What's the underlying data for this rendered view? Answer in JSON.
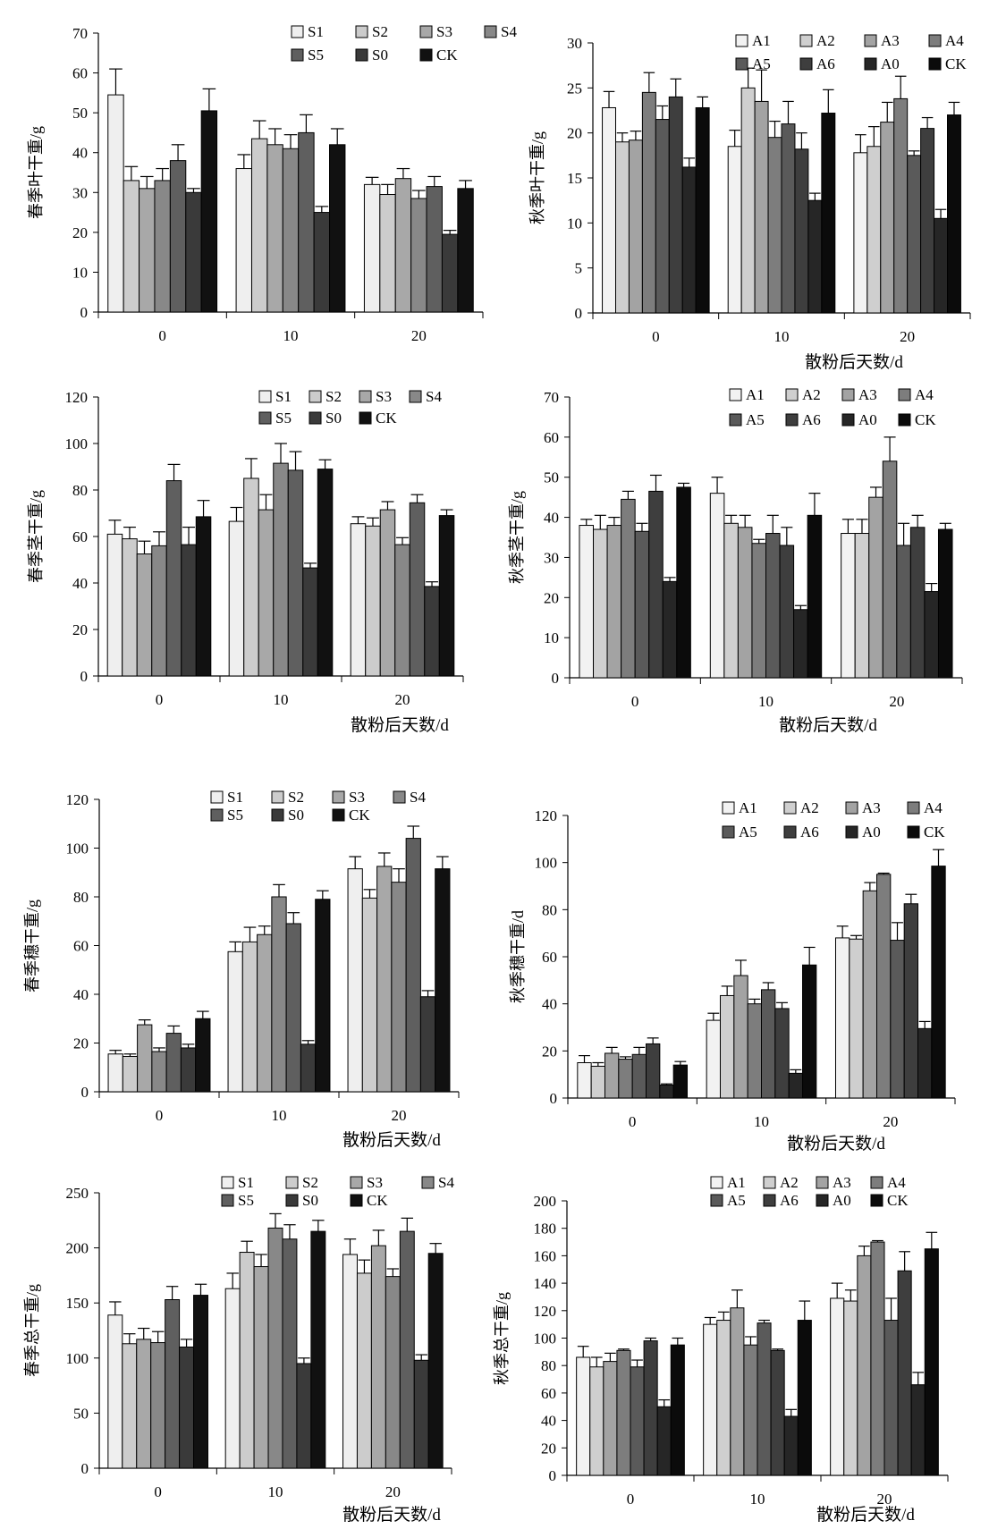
{
  "styles": {
    "spring_fills": [
      "#efefef",
      "#cccccc",
      "#a8a8a8",
      "#888888",
      "#5f5f5f",
      "#3a3a3a",
      "#111111"
    ],
    "autumn_fills": [
      "#f2f2f2",
      "#cfcfcf",
      "#a3a3a3",
      "#7d7d7d",
      "#5a5a5a",
      "#3e3e3e",
      "#262626",
      "#0b0b0b"
    ]
  },
  "chart_data": [
    {
      "type": "bar",
      "ylabel": "春季叶干重/g",
      "xlabel": "",
      "ylim": [
        0,
        70
      ],
      "yticks": [
        0,
        10,
        20,
        30,
        40,
        50,
        60,
        70
      ],
      "categories": [
        "0",
        "10",
        "20"
      ],
      "legend": "top-right",
      "series": [
        {
          "name": "S1",
          "values": [
            54.5,
            36,
            32
          ],
          "errors": [
            6.5,
            3.5,
            1.8
          ]
        },
        {
          "name": "S2",
          "values": [
            33,
            43.5,
            29.5
          ],
          "errors": [
            3.5,
            4.5,
            2.5
          ]
        },
        {
          "name": "S3",
          "values": [
            31,
            42,
            33.5
          ],
          "errors": [
            3,
            4,
            2.5
          ]
        },
        {
          "name": "S4",
          "values": [
            33,
            41,
            28.5
          ],
          "errors": [
            3,
            3.5,
            2
          ]
        },
        {
          "name": "S5",
          "values": [
            38,
            45,
            31.5
          ],
          "errors": [
            4,
            4.5,
            2.5
          ]
        },
        {
          "name": "S0",
          "values": [
            30,
            25,
            19.5
          ],
          "errors": [
            1,
            1.5,
            1
          ]
        },
        {
          "name": "CK",
          "values": [
            50.5,
            42,
            31
          ],
          "errors": [
            5.5,
            4,
            2
          ]
        }
      ]
    },
    {
      "type": "bar",
      "ylabel": "秋季叶干重/g",
      "xlabel": "散粉后天数/d",
      "ylim": [
        0,
        30
      ],
      "yticks": [
        0,
        5,
        10,
        15,
        20,
        25,
        30
      ],
      "categories": [
        "0",
        "10",
        "20"
      ],
      "legend": "top-right",
      "series": [
        {
          "name": "A1",
          "values": [
            22.8,
            18.5,
            17.8
          ],
          "errors": [
            1.8,
            1.8,
            2
          ]
        },
        {
          "name": "A2",
          "values": [
            19,
            25,
            18.5
          ],
          "errors": [
            1,
            2.2,
            2.2
          ]
        },
        {
          "name": "A3",
          "values": [
            19.2,
            23.5,
            21.2
          ],
          "errors": [
            1,
            3.5,
            2.2
          ]
        },
        {
          "name": "A4",
          "values": [
            24.5,
            19.5,
            23.8
          ],
          "errors": [
            2.2,
            1.8,
            2.5
          ]
        },
        {
          "name": "A5",
          "values": [
            21.5,
            21,
            17.5
          ],
          "errors": [
            1.5,
            2.5,
            0.5
          ]
        },
        {
          "name": "A6",
          "values": [
            24,
            18.2,
            20.5
          ],
          "errors": [
            2,
            1.8,
            1.2
          ]
        },
        {
          "name": "A0",
          "values": [
            16.2,
            12.5,
            10.5
          ],
          "errors": [
            1,
            0.8,
            1
          ]
        },
        {
          "name": "CK",
          "values": [
            22.8,
            22.2,
            22
          ],
          "errors": [
            1.2,
            2.6,
            1.4
          ]
        }
      ]
    },
    {
      "type": "bar",
      "ylabel": "春季茎干重/g",
      "xlabel": "散粉后天数/d",
      "ylim": [
        0,
        120
      ],
      "yticks": [
        0,
        20,
        40,
        60,
        80,
        100,
        120
      ],
      "categories": [
        "0",
        "10",
        "20"
      ],
      "legend": "top-right",
      "series": [
        {
          "name": "S1",
          "values": [
            61,
            66.5,
            65.5
          ],
          "errors": [
            6,
            6,
            3
          ]
        },
        {
          "name": "S2",
          "values": [
            59,
            85,
            64.5
          ],
          "errors": [
            5,
            8.5,
            3.5
          ]
        },
        {
          "name": "S3",
          "values": [
            52.5,
            71.5,
            71.5
          ],
          "errors": [
            5.5,
            6.5,
            3.5
          ]
        },
        {
          "name": "S4",
          "values": [
            56,
            91.5,
            56.5
          ],
          "errors": [
            6,
            8.5,
            3
          ]
        },
        {
          "name": "S5",
          "values": [
            84,
            88.5,
            74.5
          ],
          "errors": [
            7,
            8,
            3.5
          ]
        },
        {
          "name": "S0",
          "values": [
            56.5,
            46.5,
            38.5
          ],
          "errors": [
            7.5,
            2,
            2
          ]
        },
        {
          "name": "CK",
          "values": [
            68.5,
            89,
            69
          ],
          "errors": [
            7,
            4,
            2.5
          ]
        }
      ]
    },
    {
      "type": "bar",
      "ylabel": "秋季茎干重/g",
      "xlabel": "散粉后天数/d",
      "ylim": [
        0,
        70
      ],
      "yticks": [
        0,
        10,
        20,
        30,
        40,
        50,
        60,
        70
      ],
      "categories": [
        "0",
        "10",
        "20"
      ],
      "legend": "top-right",
      "series": [
        {
          "name": "A1",
          "values": [
            38,
            46,
            36
          ],
          "errors": [
            1.5,
            4,
            3.5
          ]
        },
        {
          "name": "A2",
          "values": [
            37,
            38.5,
            36
          ],
          "errors": [
            3.5,
            2,
            3.5
          ]
        },
        {
          "name": "A3",
          "values": [
            38,
            37.5,
            45
          ],
          "errors": [
            2,
            3,
            2.5
          ]
        },
        {
          "name": "A4",
          "values": [
            44.5,
            33.5,
            54
          ],
          "errors": [
            2,
            1,
            6
          ]
        },
        {
          "name": "A5",
          "values": [
            36.5,
            36,
            33
          ],
          "errors": [
            2,
            4.5,
            5.5
          ]
        },
        {
          "name": "A6",
          "values": [
            46.5,
            33,
            37.5
          ],
          "errors": [
            4,
            4.5,
            3
          ]
        },
        {
          "name": "A0",
          "values": [
            24,
            17,
            21.5
          ],
          "errors": [
            1,
            1,
            2
          ]
        },
        {
          "name": "CK",
          "values": [
            47.5,
            40.5,
            37
          ],
          "errors": [
            1,
            5.5,
            1.5
          ]
        }
      ]
    },
    {
      "type": "bar",
      "ylabel": "春季穗干重/g",
      "xlabel": "散粉后天数/d",
      "ylim": [
        0,
        120
      ],
      "yticks": [
        0,
        20,
        40,
        60,
        80,
        100,
        120
      ],
      "categories": [
        "0",
        "10",
        "20"
      ],
      "legend": "top-right",
      "series": [
        {
          "name": "S1",
          "values": [
            15.5,
            57.5,
            91.5
          ],
          "errors": [
            1.5,
            4,
            5
          ]
        },
        {
          "name": "S2",
          "values": [
            14.5,
            61.5,
            79.5
          ],
          "errors": [
            1,
            6,
            3.5
          ]
        },
        {
          "name": "S3",
          "values": [
            27.5,
            64.5,
            92.5
          ],
          "errors": [
            2,
            3.5,
            5.5
          ]
        },
        {
          "name": "S4",
          "values": [
            16.5,
            80,
            86
          ],
          "errors": [
            1.5,
            5,
            5.5
          ]
        },
        {
          "name": "S5",
          "values": [
            24,
            69,
            104
          ],
          "errors": [
            3,
            4.5,
            5
          ]
        },
        {
          "name": "S0",
          "values": [
            18,
            19.5,
            39
          ],
          "errors": [
            1.5,
            1.5,
            2.5
          ]
        },
        {
          "name": "CK",
          "values": [
            30,
            79,
            91.5
          ],
          "errors": [
            3,
            3.5,
            5
          ]
        }
      ]
    },
    {
      "type": "bar",
      "ylabel": "秋季穗干重/d",
      "xlabel": "散粉后天数/d",
      "ylim": [
        0,
        120
      ],
      "yticks": [
        0,
        20,
        40,
        60,
        80,
        100,
        120
      ],
      "categories": [
        "0",
        "10",
        "20"
      ],
      "legend": "top-right",
      "series": [
        {
          "name": "A1",
          "values": [
            15,
            33,
            68
          ],
          "errors": [
            3,
            3,
            5
          ]
        },
        {
          "name": "A2",
          "values": [
            13.5,
            43.5,
            67.5
          ],
          "errors": [
            1.5,
            4,
            1.5
          ]
        },
        {
          "name": "A3",
          "values": [
            19,
            52,
            88
          ],
          "errors": [
            2.5,
            6.5,
            3.5
          ]
        },
        {
          "name": "A4",
          "values": [
            16.5,
            40,
            95
          ],
          "errors": [
            1,
            2,
            0.5
          ]
        },
        {
          "name": "A5",
          "values": [
            18.5,
            46,
            67
          ],
          "errors": [
            3,
            3,
            7.5
          ]
        },
        {
          "name": "A6",
          "values": [
            23,
            38,
            82.5
          ],
          "errors": [
            2.5,
            2.5,
            4
          ]
        },
        {
          "name": "A0",
          "values": [
            5.5,
            10.5,
            29.5
          ],
          "errors": [
            0.5,
            1.5,
            3
          ]
        },
        {
          "name": "CK",
          "values": [
            14,
            56.5,
            98.5
          ],
          "errors": [
            1.5,
            7.5,
            7
          ]
        }
      ]
    },
    {
      "type": "bar",
      "ylabel": "春季总干重/g",
      "xlabel": "散粉后天数/d",
      "ylim": [
        0,
        250
      ],
      "yticks": [
        0,
        50,
        100,
        150,
        200,
        250
      ],
      "categories": [
        "0",
        "10",
        "20"
      ],
      "legend": "top-right",
      "series": [
        {
          "name": "S1",
          "values": [
            139,
            163,
            194
          ],
          "errors": [
            12,
            14,
            14
          ]
        },
        {
          "name": "S2",
          "values": [
            113,
            196,
            177
          ],
          "errors": [
            9,
            10,
            12
          ]
        },
        {
          "name": "S3",
          "values": [
            117,
            183,
            202
          ],
          "errors": [
            10,
            11,
            14
          ]
        },
        {
          "name": "S4",
          "values": [
            114,
            218,
            174
          ],
          "errors": [
            10,
            13,
            7
          ]
        },
        {
          "name": "S5",
          "values": [
            153,
            208,
            215
          ],
          "errors": [
            12,
            13,
            12
          ]
        },
        {
          "name": "S0",
          "values": [
            110,
            95,
            98
          ],
          "errors": [
            7,
            5,
            5
          ]
        },
        {
          "name": "CK",
          "values": [
            157,
            215,
            195
          ],
          "errors": [
            10,
            10,
            9
          ]
        }
      ]
    },
    {
      "type": "bar",
      "ylabel": "秋季总干重/g",
      "xlabel": "散粉后天数/d",
      "ylim": [
        0,
        200
      ],
      "yticks": [
        0,
        20,
        40,
        60,
        80,
        100,
        120,
        140,
        160,
        180,
        200
      ],
      "categories": [
        "0",
        "10",
        "20"
      ],
      "legend": "top-right",
      "series": [
        {
          "name": "A1",
          "values": [
            86,
            110,
            129
          ],
          "errors": [
            8,
            5,
            11
          ]
        },
        {
          "name": "A2",
          "values": [
            79,
            113,
            127
          ],
          "errors": [
            7,
            6,
            8
          ]
        },
        {
          "name": "A3",
          "values": [
            83,
            122,
            160
          ],
          "errors": [
            6,
            13,
            7
          ]
        },
        {
          "name": "A4",
          "values": [
            91,
            95,
            170
          ],
          "errors": [
            1,
            6,
            1
          ]
        },
        {
          "name": "A5",
          "values": [
            79,
            111,
            113
          ],
          "errors": [
            5,
            2,
            16
          ]
        },
        {
          "name": "A6",
          "values": [
            98,
            91,
            149
          ],
          "errors": [
            2,
            1,
            14
          ]
        },
        {
          "name": "A0",
          "values": [
            50,
            43,
            66
          ],
          "errors": [
            5,
            5,
            9
          ]
        },
        {
          "name": "CK",
          "values": [
            95,
            113,
            165
          ],
          "errors": [
            5,
            14,
            12
          ]
        }
      ]
    }
  ]
}
